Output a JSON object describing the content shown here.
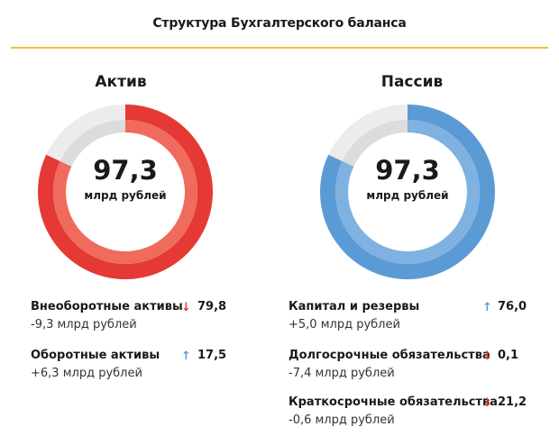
{
  "title": "Структура Бухгалтерского баланса",
  "colors": {
    "rule": "#f2c230",
    "asset_main": "#e53935",
    "asset_light": "#ef6b5d",
    "liab_main": "#5b9bd5",
    "liab_light": "#7fb1e1",
    "remainder_outer": "#ececec",
    "remainder_inner": "#dcdcdc",
    "down": "#e53935",
    "up": "#5b9bd5"
  },
  "chart_data": [
    {
      "type": "pie",
      "title": "Актив",
      "center_value": "97,3",
      "center_unit": "млрд рублей",
      "filled_fraction": 0.82
    },
    {
      "type": "pie",
      "title": "Пассив",
      "center_value": "97,3",
      "center_unit": "млрд рублей",
      "filled_fraction": 0.82
    }
  ],
  "assets": [
    {
      "label": "Внеоборотные активы",
      "direction": "down",
      "arrow": "↓",
      "value": "79,8",
      "change": "-9,3 млрд рублей"
    },
    {
      "label": "Оборотные активы",
      "direction": "up",
      "arrow": "↑",
      "value": "17,5",
      "change": "+6,3 млрд рублей"
    }
  ],
  "liabilities": [
    {
      "label": "Капитал и резервы",
      "direction": "up",
      "arrow": "↑",
      "value": "76,0",
      "change": "+5,0 млрд рублей"
    },
    {
      "label": "Долгосрочные обязательства",
      "direction": "down",
      "arrow": "↓",
      "value": "0,1",
      "change": "-7,4 млрд рублей"
    },
    {
      "label": "Краткосрочные обязательства",
      "direction": "down",
      "arrow": "↓",
      "value": "21,2",
      "change": "-0,6 млрд рублей"
    }
  ]
}
